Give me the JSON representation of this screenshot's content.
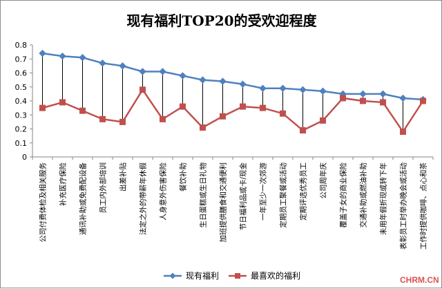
{
  "chart_data": {
    "type": "line",
    "title": "现有福利TOP20的受欢迎程度",
    "xlabel": "",
    "ylabel": "",
    "ylim": [
      0,
      0.8
    ],
    "yticks": [
      "0",
      "0.1",
      "0.2",
      "0.3",
      "0.4",
      "0.5",
      "0.6",
      "0.7",
      "0.8"
    ],
    "grid": false,
    "drop_lines": true,
    "legend_position": "bottom",
    "categories": [
      "公司付费体检及相关服务",
      "补充医疗保险",
      "通讯补助或免费配设备",
      "员工内外部培训",
      "出差补贴",
      "法定之外的带薪年休假",
      "人身意外伤害保险",
      "餐饮补助",
      "生日蛋糕或生日礼物",
      "加班提供膳食和交通便利",
      "节日福利品或卡/现金",
      "一年至少一次郊游",
      "定期员工聚餐或活动",
      "定期评选优秀员工",
      "公司周年庆",
      "覆盖子女的商业保险",
      "交通补助或燃油补助",
      "未用年假折现或转下年",
      "表彰员工时举办晚会或活动",
      "工作时提供咖啡、点心和茶"
    ],
    "series": [
      {
        "name": "现有福利",
        "color": "#4f81bd",
        "marker": "diamond",
        "values": [
          0.74,
          0.72,
          0.71,
          0.67,
          0.65,
          0.61,
          0.61,
          0.58,
          0.55,
          0.54,
          0.52,
          0.49,
          0.49,
          0.48,
          0.47,
          0.45,
          0.45,
          0.45,
          0.42,
          0.41
        ]
      },
      {
        "name": "最喜欢的福利",
        "color": "#c0504d",
        "marker": "square",
        "values": [
          0.35,
          0.39,
          0.33,
          0.27,
          0.25,
          0.48,
          0.27,
          0.36,
          0.21,
          0.29,
          0.36,
          0.35,
          0.31,
          0.19,
          0.26,
          0.42,
          0.4,
          0.39,
          0.18,
          0.4
        ]
      }
    ]
  },
  "watermark": "CHRM.CN"
}
